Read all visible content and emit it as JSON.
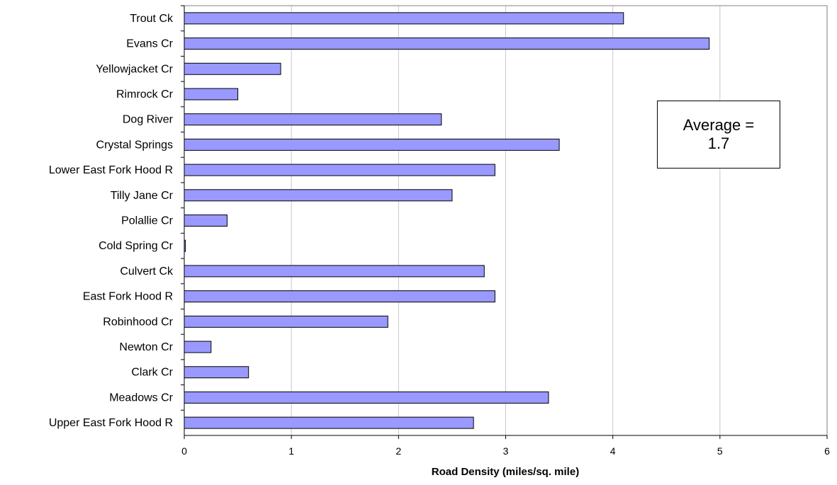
{
  "chart_data": {
    "type": "bar",
    "orientation": "horizontal",
    "categories": [
      "Trout Ck",
      "Evans Cr",
      "Yellowjacket Cr",
      "Rimrock Cr",
      "Dog River",
      "Crystal Springs",
      "Lower East Fork Hood R",
      "Tilly Jane Cr",
      "Polallie Cr",
      "Cold Spring Cr",
      "Culvert Ck",
      "East Fork Hood R",
      "Robinhood Cr",
      "Newton Cr",
      "Clark Cr",
      "Meadows Cr",
      "Upper East Fork Hood R"
    ],
    "values": [
      4.1,
      4.9,
      0.9,
      0.5,
      2.4,
      3.5,
      2.9,
      2.5,
      0.4,
      0.01,
      2.8,
      2.9,
      1.9,
      0.25,
      0.6,
      3.4,
      2.7
    ],
    "xlabel": "Road Density (miles/sq. mile)",
    "ylabel": "",
    "xlim": [
      0,
      6
    ],
    "xticks": [
      "0",
      "1",
      "2",
      "3",
      "4",
      "5",
      "6"
    ],
    "grid": "vertical",
    "bar_color": "#9999ff",
    "annotation": {
      "line1": "Average =",
      "line2": "1.7"
    }
  }
}
